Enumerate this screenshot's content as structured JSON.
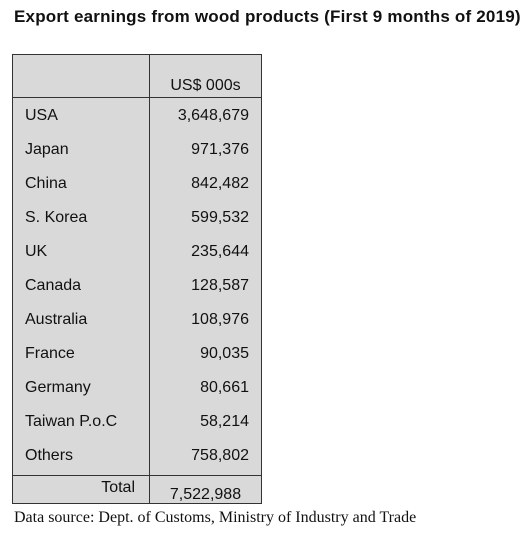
{
  "title": "Export earnings from wood products (First 9 months of 2019)",
  "source": "Data source: Dept. of Customs, Ministry of Industry and Trade",
  "chart_data": {
    "type": "table",
    "title": "Export earnings from wood products (First 9 months of 2019)",
    "columns": [
      "",
      "US$ 000s"
    ],
    "rows": [
      {
        "country": "USA",
        "value": "3,648,679"
      },
      {
        "country": "Japan",
        "value": "971,376"
      },
      {
        "country": "China",
        "value": "842,482"
      },
      {
        "country": "S. Korea",
        "value": "599,532"
      },
      {
        "country": "UK",
        "value": "235,644"
      },
      {
        "country": "Canada",
        "value": "128,587"
      },
      {
        "country": "Australia",
        "value": "108,976"
      },
      {
        "country": "France",
        "value": "90,035"
      },
      {
        "country": "Germany",
        "value": "80,661"
      },
      {
        "country": "Taiwan P.o.C",
        "value": "58,214"
      },
      {
        "country": "Others",
        "value": "758,802"
      }
    ],
    "total": {
      "label": "Total",
      "value": "7,522,988"
    }
  },
  "colors": {
    "table_background": "#d9d9d9",
    "border": "#333333",
    "text": "#111111"
  }
}
